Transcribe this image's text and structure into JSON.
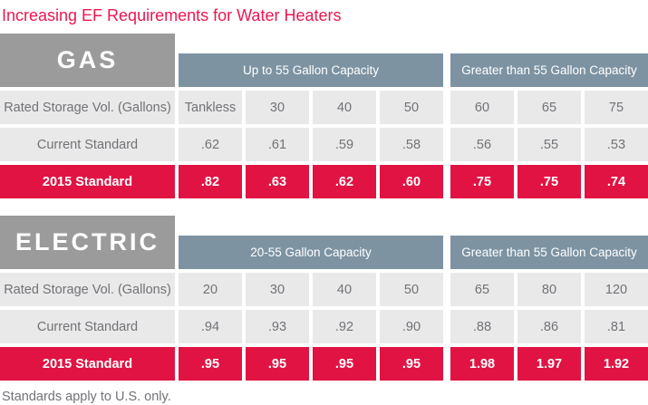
{
  "title": "Increasing EF Requirements for Water Heaters",
  "footnote": "Standards apply to U.S. only.",
  "colors": {
    "title_red": "#ed1650",
    "standard_red": "#e11343",
    "header_blue": "#7d93a2",
    "section_gray": "#9b9b9b",
    "row_bg_gray": "#e9e9e9",
    "text_gray": "#717277"
  },
  "sections": [
    {
      "name": "GAS",
      "groups": [
        {
          "label": "Up to 55 Gallon Capacity",
          "span": 4
        },
        {
          "label": "Greater than 55 Gallon Capacity",
          "span": 3
        }
      ],
      "rows": [
        {
          "label": "Rated Storage Vol. (Gallons)",
          "style": "plain",
          "values": [
            "Tankless",
            "30",
            "40",
            "50",
            "60",
            "65",
            "75"
          ]
        },
        {
          "label": "Current Standard",
          "style": "plain",
          "values": [
            ".62",
            ".61",
            ".59",
            ".58",
            ".56",
            ".55",
            ".53"
          ]
        },
        {
          "label": "2015 Standard",
          "style": "red",
          "values": [
            ".82",
            ".63",
            ".62",
            ".60",
            ".75",
            ".75",
            ".74"
          ]
        }
      ]
    },
    {
      "name": "ELECTRIC",
      "groups": [
        {
          "label": "20-55 Gallon Capacity",
          "span": 4
        },
        {
          "label": "Greater than 55 Gallon Capacity",
          "span": 3
        }
      ],
      "rows": [
        {
          "label": "Rated Storage Vol. (Gallons)",
          "style": "plain",
          "values": [
            "20",
            "30",
            "40",
            "50",
            "65",
            "80",
            "120"
          ]
        },
        {
          "label": "Current Standard",
          "style": "plain",
          "values": [
            ".94",
            ".93",
            ".92",
            ".90",
            ".88",
            ".86",
            ".81"
          ]
        },
        {
          "label": "2015 Standard",
          "style": "red",
          "values": [
            ".95",
            ".95",
            ".95",
            ".95",
            "1.98",
            "1.97",
            "1.92"
          ]
        }
      ]
    }
  ],
  "chart_data": [
    {
      "type": "table",
      "title": "GAS",
      "column_groups": [
        {
          "label": "Up to 55 Gallon Capacity",
          "columns": [
            "Tankless",
            30,
            40,
            50
          ]
        },
        {
          "label": "Greater than 55 Gallon Capacity",
          "columns": [
            60,
            65,
            75
          ]
        }
      ],
      "rows": [
        {
          "label": "Rated Storage Vol. (Gallons)",
          "values": [
            "Tankless",
            30,
            40,
            50,
            60,
            65,
            75
          ]
        },
        {
          "label": "Current Standard",
          "values": [
            0.62,
            0.61,
            0.59,
            0.58,
            0.56,
            0.55,
            0.53
          ]
        },
        {
          "label": "2015 Standard",
          "values": [
            0.82,
            0.63,
            0.62,
            0.6,
            0.75,
            0.75,
            0.74
          ]
        }
      ]
    },
    {
      "type": "table",
      "title": "ELECTRIC",
      "column_groups": [
        {
          "label": "20-55 Gallon Capacity",
          "columns": [
            20,
            30,
            40,
            50
          ]
        },
        {
          "label": "Greater than 55 Gallon Capacity",
          "columns": [
            65,
            80,
            120
          ]
        }
      ],
      "rows": [
        {
          "label": "Rated Storage Vol. (Gallons)",
          "values": [
            20,
            30,
            40,
            50,
            65,
            80,
            120
          ]
        },
        {
          "label": "Current Standard",
          "values": [
            0.94,
            0.93,
            0.92,
            0.9,
            0.88,
            0.86,
            0.81
          ]
        },
        {
          "label": "2015 Standard",
          "values": [
            0.95,
            0.95,
            0.95,
            0.95,
            1.98,
            1.97,
            1.92
          ]
        }
      ]
    }
  ]
}
